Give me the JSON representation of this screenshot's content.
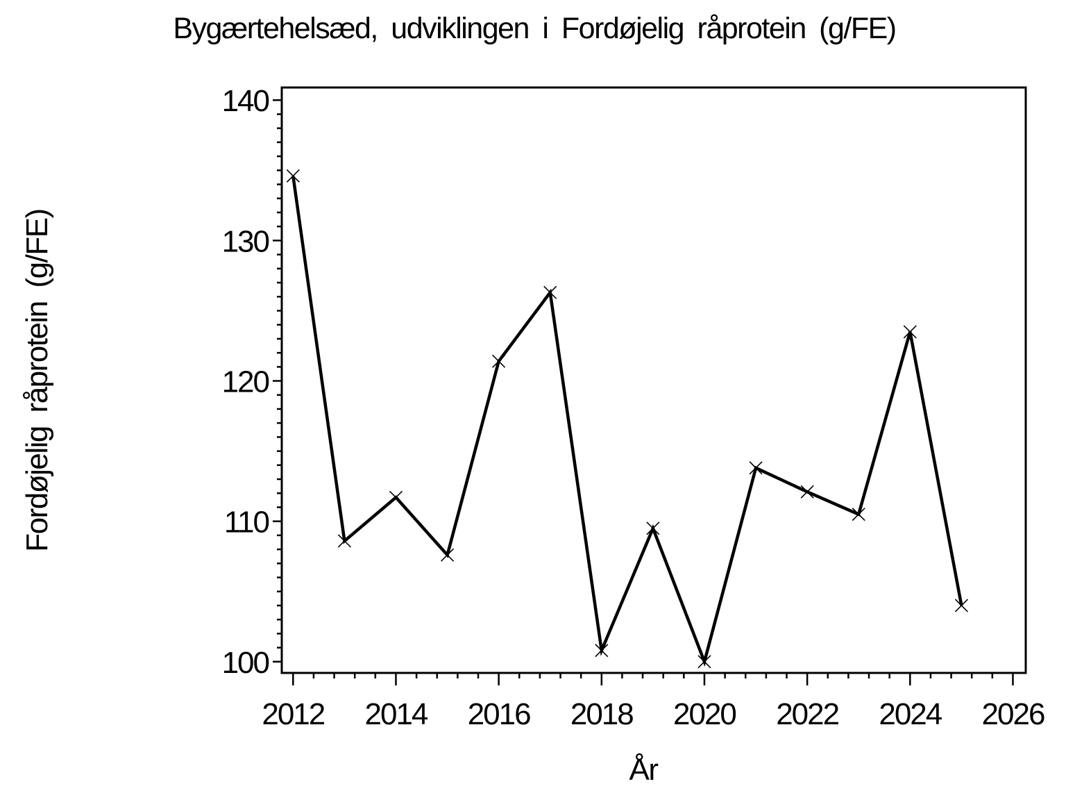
{
  "chart_data": {
    "type": "line",
    "title": "Bygærtehelsæd, udviklingen i Fordøjelig råprotein (g/FE)",
    "xlabel": "År",
    "ylabel": "Fordøjelig råprotein (g/FE)",
    "x": [
      2012,
      2013,
      2014,
      2015,
      2016,
      2017,
      2018,
      2019,
      2020,
      2021,
      2022,
      2023,
      2024,
      2025
    ],
    "series": [
      {
        "name": "Fordøjelig råprotein (g/FE)",
        "values": [
          134.6,
          108.6,
          111.7,
          107.6,
          121.4,
          126.3,
          100.8,
          109.5,
          100.0,
          113.8,
          112.1,
          110.5,
          123.5,
          104.0
        ]
      }
    ],
    "xlim": [
      2011.78,
      2026.25
    ],
    "ylim": [
      99.2,
      140.9
    ],
    "x_major_ticks": [
      2012,
      2014,
      2016,
      2018,
      2020,
      2022,
      2024,
      2026
    ],
    "x_minor_step": 0.4,
    "y_major_ticks": [
      100,
      110,
      120,
      130,
      140
    ],
    "y_minor_step": 1,
    "marker": "x-cross",
    "line_color": "#000000",
    "marker_color": "#000000",
    "axis_color": "#000000",
    "background_color": "#ffffff",
    "grid": false,
    "legend": "none"
  }
}
